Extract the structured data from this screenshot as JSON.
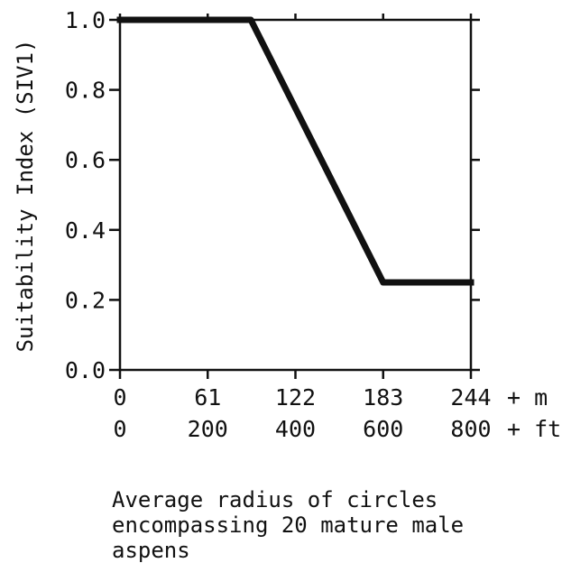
{
  "chart_data": {
    "type": "line",
    "title": "",
    "ylabel": "Suitability Index (SIV1)",
    "xlabel": "Average radius of circles\nencompassing 20 mature male\naspens",
    "ylim": [
      0,
      1.0
    ],
    "yticks": [
      "0.0",
      "0.2",
      "0.4",
      "0.6",
      "0.8",
      "1.0"
    ],
    "xlim_m": [
      0,
      244
    ],
    "xticks_m": [
      "0",
      "61",
      "122",
      "183",
      "244"
    ],
    "xunit_m": "+ m",
    "xticks_ft": [
      "0",
      "200",
      "400",
      "600",
      "800"
    ],
    "xunit_ft": "+ ft",
    "series": [
      {
        "x": [
          0,
          91,
          183,
          244
        ],
        "y": [
          1.0,
          1.0,
          0.25,
          0.25
        ]
      }
    ],
    "grid": false
  }
}
